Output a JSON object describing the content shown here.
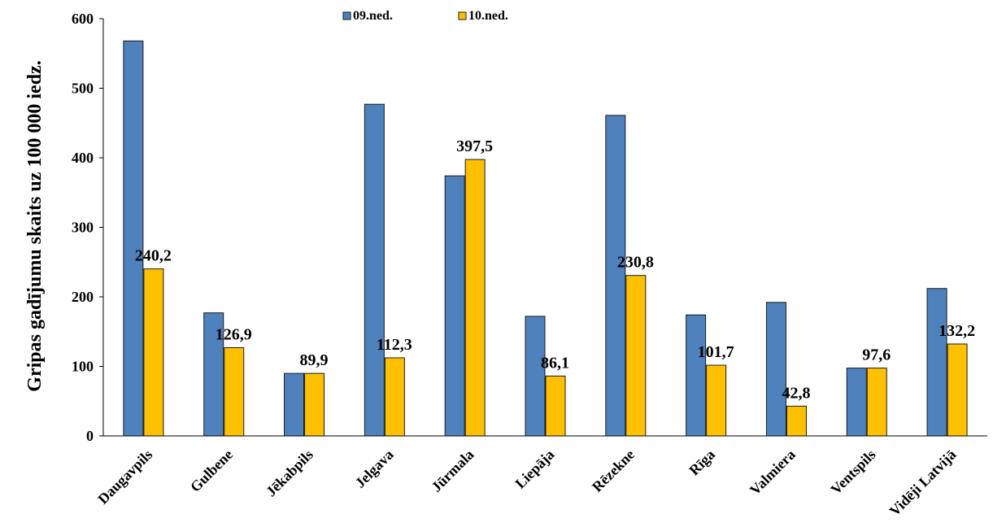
{
  "chart_data": {
    "type": "bar",
    "ylabel": "Gripas gadījumu skaits uz 100 000 iedz.",
    "ylim": [
      0,
      600
    ],
    "yticks": [
      0,
      100,
      200,
      300,
      400,
      500,
      600
    ],
    "grid": false,
    "legend_position": "top",
    "categories": [
      "Daugavpils",
      "Gulbene",
      "Jēkabpils",
      "Jelgava",
      "Jūrmala",
      "Liepāja",
      "Rēzekne",
      "Rīga",
      "Valmiera",
      "Ventspils",
      "Vidēji Latvijā"
    ],
    "series": [
      {
        "name": "09.ned.",
        "color": "#4F81BD",
        "values": [
          568,
          177,
          89.9,
          477,
          374,
          172,
          461,
          174,
          192,
          97.6,
          212
        ],
        "labels": []
      },
      {
        "name": "10.ned.",
        "color": "#FFC000",
        "values": [
          240.2,
          126.9,
          89.9,
          112.3,
          397.5,
          86.1,
          230.8,
          101.7,
          42.8,
          97.6,
          132.2
        ],
        "labels": [
          "240,2",
          "126,9",
          "89,9",
          "112,3",
          "397,5",
          "86,1",
          "230,8",
          "101,7",
          "42,8",
          "97,6",
          "132,2"
        ]
      }
    ]
  }
}
